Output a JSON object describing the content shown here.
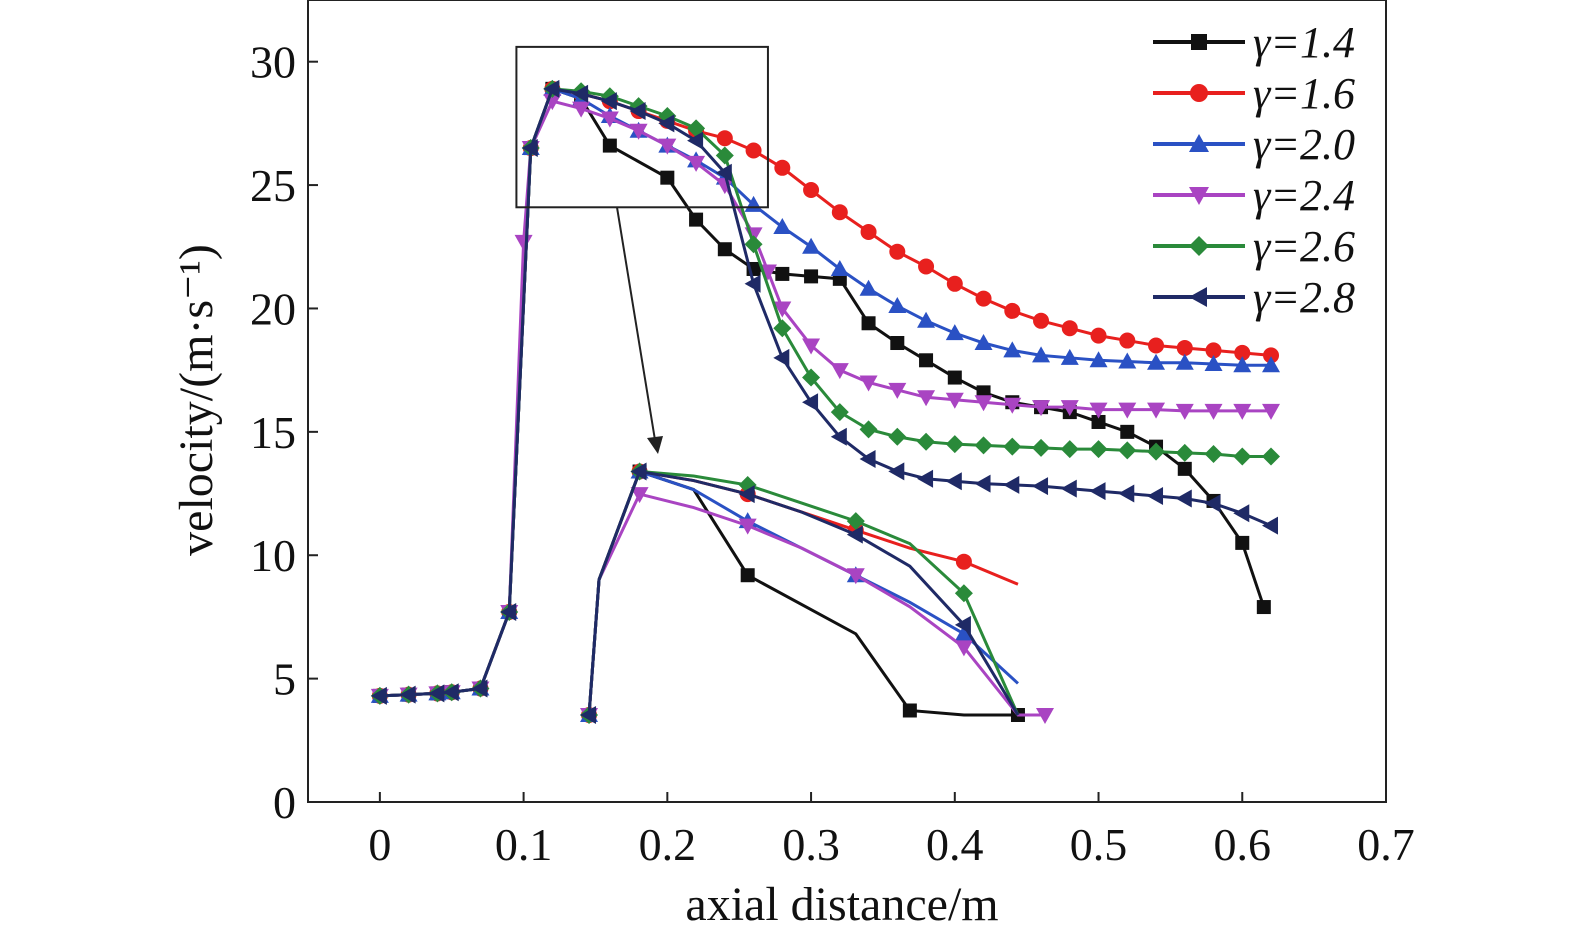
{
  "chart_data": {
    "type": "line",
    "xlabel": "axial distance/m",
    "ylabel": "velocity/(m·s⁻¹)",
    "xlim": [
      -0.05,
      0.7
    ],
    "ylim": [
      0,
      32.5
    ],
    "xticks": [
      "0",
      "0.1",
      "0.2",
      "0.3",
      "0.4",
      "0.5",
      "0.6",
      "0.7"
    ],
    "yticks": [
      "0",
      "5",
      "10",
      "15",
      "20",
      "25",
      "30"
    ],
    "grid": false,
    "legend_position": "top-right",
    "series": [
      {
        "name": "γ=1.4",
        "color": "#111111",
        "marker": "square",
        "x": [
          0.0,
          0.02,
          0.04,
          0.05,
          0.07,
          0.09,
          0.105,
          0.12,
          0.14,
          0.16,
          0.2,
          0.22,
          0.24,
          0.26,
          0.28,
          0.3,
          0.32,
          0.34,
          0.36,
          0.38,
          0.4,
          0.42,
          0.44,
          0.46,
          0.48,
          0.5,
          0.52,
          0.54,
          0.56,
          0.58,
          0.6,
          0.615
        ],
        "y": [
          4.3,
          4.35,
          4.4,
          4.45,
          4.6,
          7.7,
          26.5,
          28.9,
          28.5,
          26.6,
          25.3,
          23.6,
          22.4,
          21.6,
          21.4,
          21.3,
          21.2,
          19.4,
          18.6,
          17.9,
          17.2,
          16.6,
          16.2,
          16.0,
          15.8,
          15.4,
          15.0,
          14.4,
          13.5,
          12.2,
          10.5,
          7.9
        ]
      },
      {
        "name": "γ=1.6",
        "color": "#e8201e",
        "marker": "circle",
        "x": [
          0.0,
          0.02,
          0.04,
          0.05,
          0.07,
          0.09,
          0.105,
          0.12,
          0.14,
          0.16,
          0.18,
          0.2,
          0.22,
          0.24,
          0.26,
          0.28,
          0.3,
          0.32,
          0.34,
          0.36,
          0.38,
          0.4,
          0.42,
          0.44,
          0.46,
          0.48,
          0.5,
          0.52,
          0.54,
          0.56,
          0.58,
          0.6,
          0.62
        ],
        "y": [
          4.3,
          4.35,
          4.4,
          4.45,
          4.6,
          7.7,
          26.5,
          28.9,
          28.7,
          28.4,
          28.0,
          27.6,
          27.2,
          26.9,
          26.4,
          25.7,
          24.8,
          23.9,
          23.1,
          22.3,
          21.7,
          21.0,
          20.4,
          19.9,
          19.5,
          19.2,
          18.9,
          18.7,
          18.5,
          18.4,
          18.3,
          18.2,
          18.1
        ]
      },
      {
        "name": "γ=2.0",
        "color": "#2a51c4",
        "marker": "triangle-up",
        "x": [
          0.0,
          0.02,
          0.04,
          0.05,
          0.07,
          0.09,
          0.105,
          0.12,
          0.14,
          0.16,
          0.18,
          0.2,
          0.22,
          0.24,
          0.26,
          0.28,
          0.3,
          0.32,
          0.34,
          0.36,
          0.38,
          0.4,
          0.42,
          0.44,
          0.46,
          0.48,
          0.5,
          0.52,
          0.54,
          0.56,
          0.58,
          0.6,
          0.62
        ],
        "y": [
          4.3,
          4.35,
          4.4,
          4.45,
          4.6,
          7.7,
          26.5,
          28.9,
          28.5,
          27.8,
          27.2,
          26.6,
          26.0,
          25.3,
          24.2,
          23.3,
          22.5,
          21.6,
          20.8,
          20.1,
          19.5,
          19.0,
          18.6,
          18.3,
          18.1,
          18.0,
          17.9,
          17.85,
          17.8,
          17.8,
          17.75,
          17.7,
          17.7
        ]
      },
      {
        "name": "γ=2.4",
        "color": "#a944c2",
        "marker": "triangle-down",
        "x": [
          0.0,
          0.02,
          0.04,
          0.05,
          0.07,
          0.09,
          0.1,
          0.105,
          0.12,
          0.14,
          0.16,
          0.18,
          0.2,
          0.22,
          0.24,
          0.26,
          0.27,
          0.28,
          0.3,
          0.32,
          0.34,
          0.36,
          0.38,
          0.4,
          0.42,
          0.44,
          0.46,
          0.48,
          0.5,
          0.52,
          0.54,
          0.56,
          0.58,
          0.6,
          0.62
        ],
        "y": [
          4.3,
          4.35,
          4.4,
          4.45,
          4.6,
          7.7,
          22.7,
          26.5,
          28.4,
          28.1,
          27.7,
          27.2,
          26.6,
          25.9,
          25.0,
          23.0,
          21.5,
          20.0,
          18.5,
          17.5,
          17.0,
          16.7,
          16.4,
          16.3,
          16.2,
          16.1,
          16.0,
          16.0,
          15.9,
          15.9,
          15.9,
          15.85,
          15.85,
          15.85,
          15.85
        ]
      },
      {
        "name": "γ=2.6",
        "color": "#2a8a3a",
        "marker": "diamond",
        "x": [
          0.0,
          0.02,
          0.04,
          0.05,
          0.07,
          0.09,
          0.105,
          0.12,
          0.14,
          0.16,
          0.18,
          0.2,
          0.22,
          0.24,
          0.26,
          0.28,
          0.3,
          0.32,
          0.34,
          0.36,
          0.38,
          0.4,
          0.42,
          0.44,
          0.46,
          0.48,
          0.5,
          0.52,
          0.54,
          0.56,
          0.58,
          0.6,
          0.62
        ],
        "y": [
          4.3,
          4.35,
          4.4,
          4.45,
          4.6,
          7.7,
          26.5,
          28.9,
          28.8,
          28.6,
          28.2,
          27.8,
          27.3,
          26.2,
          22.6,
          19.2,
          17.2,
          15.8,
          15.1,
          14.8,
          14.6,
          14.5,
          14.45,
          14.4,
          14.35,
          14.3,
          14.3,
          14.25,
          14.2,
          14.15,
          14.1,
          14.0,
          14.0
        ]
      },
      {
        "name": "γ=2.8",
        "color": "#1f2a66",
        "marker": "triangle-left",
        "x": [
          0.0,
          0.02,
          0.04,
          0.05,
          0.07,
          0.09,
          0.105,
          0.12,
          0.14,
          0.16,
          0.18,
          0.2,
          0.22,
          0.24,
          0.26,
          0.28,
          0.3,
          0.32,
          0.34,
          0.36,
          0.38,
          0.4,
          0.42,
          0.44,
          0.46,
          0.48,
          0.5,
          0.52,
          0.54,
          0.56,
          0.58,
          0.6,
          0.62
        ],
        "y": [
          4.3,
          4.35,
          4.4,
          4.45,
          4.6,
          7.7,
          26.5,
          28.9,
          28.7,
          28.4,
          28.0,
          27.5,
          26.8,
          25.5,
          21.0,
          18.0,
          16.2,
          14.8,
          13.9,
          13.4,
          13.1,
          13.0,
          12.9,
          12.85,
          12.8,
          12.7,
          12.6,
          12.5,
          12.4,
          12.3,
          12.1,
          11.7,
          11.2
        ]
      }
    ],
    "annotations": [
      {
        "type": "zoom-box",
        "x_range": [
          0.095,
          0.27
        ],
        "y_range": [
          24.1,
          30.6
        ]
      },
      {
        "type": "inset",
        "description": "enlarged view of boxed region, same six series"
      }
    ]
  }
}
